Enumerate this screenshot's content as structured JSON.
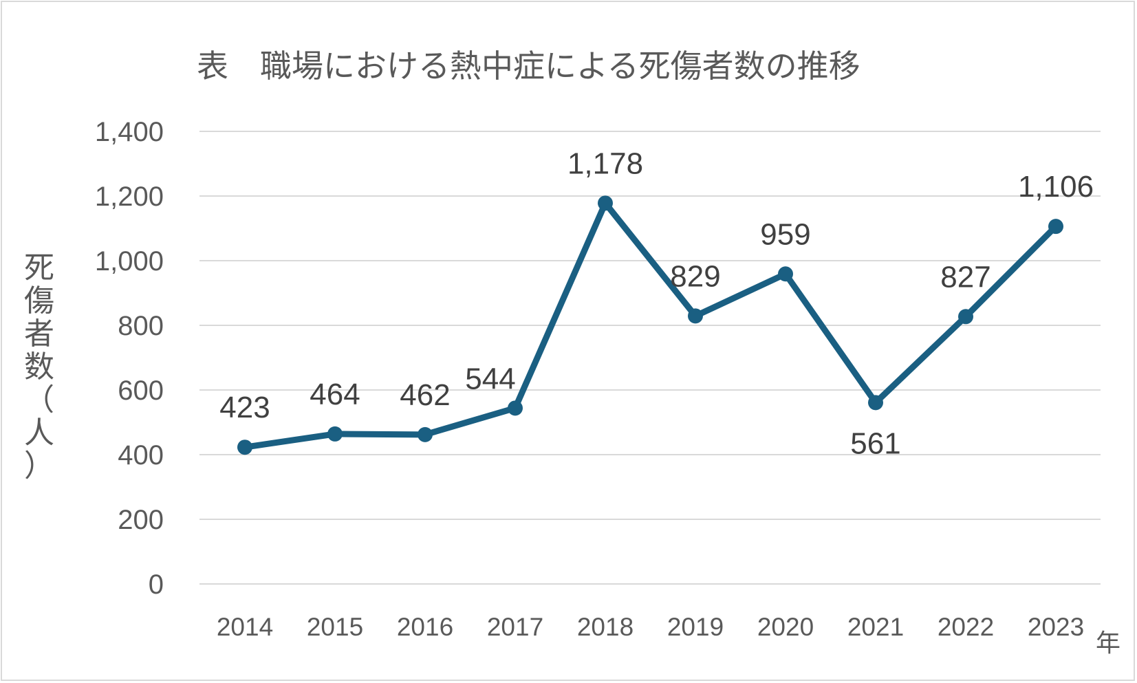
{
  "chart_data": {
    "type": "line",
    "title": "表　職場における熱中症による死傷者数の推移",
    "ylabel": "死傷者数（人）",
    "xlabel": "年",
    "categories": [
      "2014",
      "2015",
      "2016",
      "2017",
      "2018",
      "2019",
      "2020",
      "2021",
      "2022",
      "2023"
    ],
    "values": [
      423,
      464,
      462,
      544,
      1178,
      829,
      959,
      561,
      827,
      1106
    ],
    "data_labels": [
      "423",
      "464",
      "462",
      "544",
      "1,178",
      "829",
      "959",
      "561",
      "827",
      "1,106"
    ],
    "yticks": [
      0,
      200,
      400,
      600,
      800,
      1000,
      1200,
      1400
    ],
    "ytick_labels": [
      "0",
      "200",
      "400",
      "600",
      "800",
      "1,000",
      "1,200",
      "1,400"
    ],
    "ylim": [
      0,
      1400
    ],
    "grid": true,
    "legend": "none",
    "line_color": "#1a5f82"
  }
}
